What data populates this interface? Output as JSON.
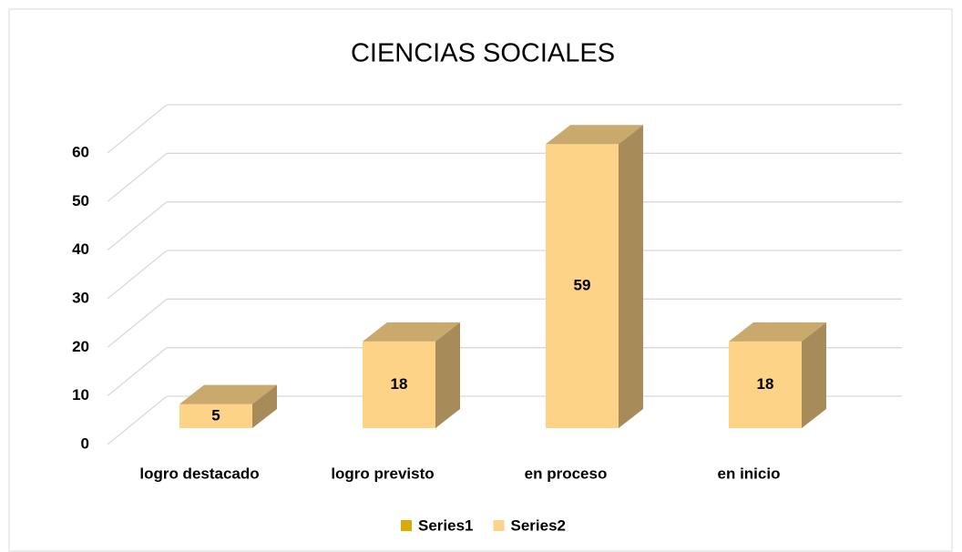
{
  "chart_data": {
    "type": "bar3d",
    "title": "CIENCIAS SOCIALES",
    "categories": [
      "logro destacado",
      "logro previsto",
      "en proceso",
      "en inicio"
    ],
    "series": [
      {
        "name": "Series1",
        "color": "#dcaa08",
        "values": [
          null,
          null,
          null,
          null
        ]
      },
      {
        "name": "Series2",
        "color": "#fdd387",
        "values": [
          5,
          18,
          59,
          18
        ]
      }
    ],
    "ylim": [
      0,
      60
    ],
    "yticks": [
      0,
      10,
      20,
      30,
      40,
      50,
      60
    ],
    "grid": true,
    "legend": "bottom"
  }
}
